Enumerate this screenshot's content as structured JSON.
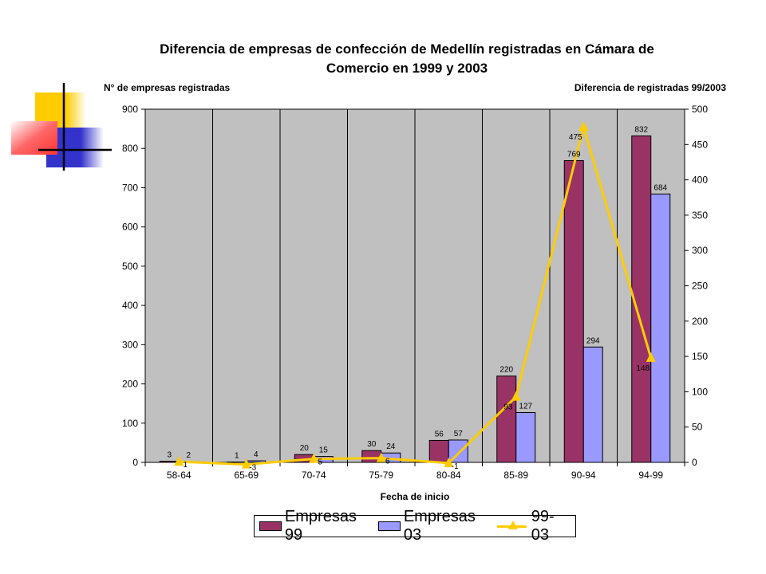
{
  "chart_data": {
    "type": "bar",
    "title_lines": [
      "Diferencia de empresas de confección de Medellín registradas en Cámara de",
      "Comercio en 1999 y 2003"
    ],
    "ylabel_left": "N° de empresas registradas",
    "ylabel_right": "Diferencia de registradas 99/2003",
    "xlabel": "Fecha de inicio",
    "categories": [
      "58-64",
      "65-69",
      "70-74",
      "75-79",
      "80-84",
      "85-89",
      "90-94",
      "94-99"
    ],
    "ylim_left": [
      0,
      900
    ],
    "yticks_left": [
      0,
      100,
      200,
      300,
      400,
      500,
      600,
      700,
      800,
      900
    ],
    "ylim_right": [
      0,
      500
    ],
    "yticks_right": [
      0,
      50,
      100,
      150,
      200,
      250,
      300,
      350,
      400,
      450,
      500
    ],
    "grid": "vertical",
    "legend_position": "bottom",
    "series": [
      {
        "name": "Empresas 99",
        "kind": "bar",
        "axis": "left",
        "color": "#993366",
        "values": [
          3,
          1,
          20,
          30,
          56,
          220,
          769,
          832
        ]
      },
      {
        "name": "Empresas 03",
        "kind": "bar",
        "axis": "left",
        "color": "#9999FF",
        "values": [
          2,
          4,
          15,
          24,
          57,
          127,
          294,
          684
        ]
      },
      {
        "name": "99-03",
        "kind": "line",
        "axis": "right",
        "color": "#FFCC00",
        "values": [
          1,
          -3,
          5,
          6,
          -1,
          93,
          475,
          148
        ]
      }
    ]
  },
  "colors": {
    "plot_background": "#C0C0C0",
    "decoration_yellow": "#FFCC00",
    "decoration_blue": "#3333CC",
    "decoration_red": "#FF3333"
  }
}
